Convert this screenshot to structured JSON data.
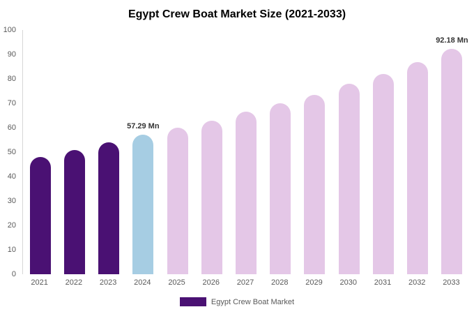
{
  "title": "Egypt Crew Boat Market Size (2021-2033)",
  "legend": {
    "label": "Egypt Crew Boat Market",
    "swatch_color": "#4a1173"
  },
  "colors": {
    "historical_bar": "#4a1173",
    "base_year_bar": "#a6cde3",
    "forecast_bar": "#e4c7e7",
    "axis_line": "#d6d6d6",
    "tick_text": "#595959",
    "label_text": "#333333"
  },
  "chart_data": {
    "type": "bar",
    "title": "Egypt Crew Boat Market Size (2021-2033)",
    "xlabel": "",
    "ylabel": "",
    "ylim": [
      0,
      100
    ],
    "ytick_step": 10,
    "grid": false,
    "legend_position": "bottom",
    "categories": [
      "2021",
      "2022",
      "2023",
      "2024",
      "2025",
      "2026",
      "2027",
      "2028",
      "2029",
      "2030",
      "2031",
      "2032",
      "2033"
    ],
    "values": [
      48,
      51,
      54,
      57.29,
      60,
      63,
      66.5,
      70,
      73.5,
      78,
      82,
      87,
      92.18
    ],
    "bar_colors": [
      "#4a1173",
      "#4a1173",
      "#4a1173",
      "#a6cde3",
      "#e4c7e7",
      "#e4c7e7",
      "#e4c7e7",
      "#e4c7e7",
      "#e4c7e7",
      "#e4c7e7",
      "#e4c7e7",
      "#e4c7e7",
      "#e4c7e7"
    ],
    "annotations": [
      {
        "index": 3,
        "text": "57.29 Mn"
      },
      {
        "index": 12,
        "text": "92.18 Mn"
      }
    ]
  }
}
